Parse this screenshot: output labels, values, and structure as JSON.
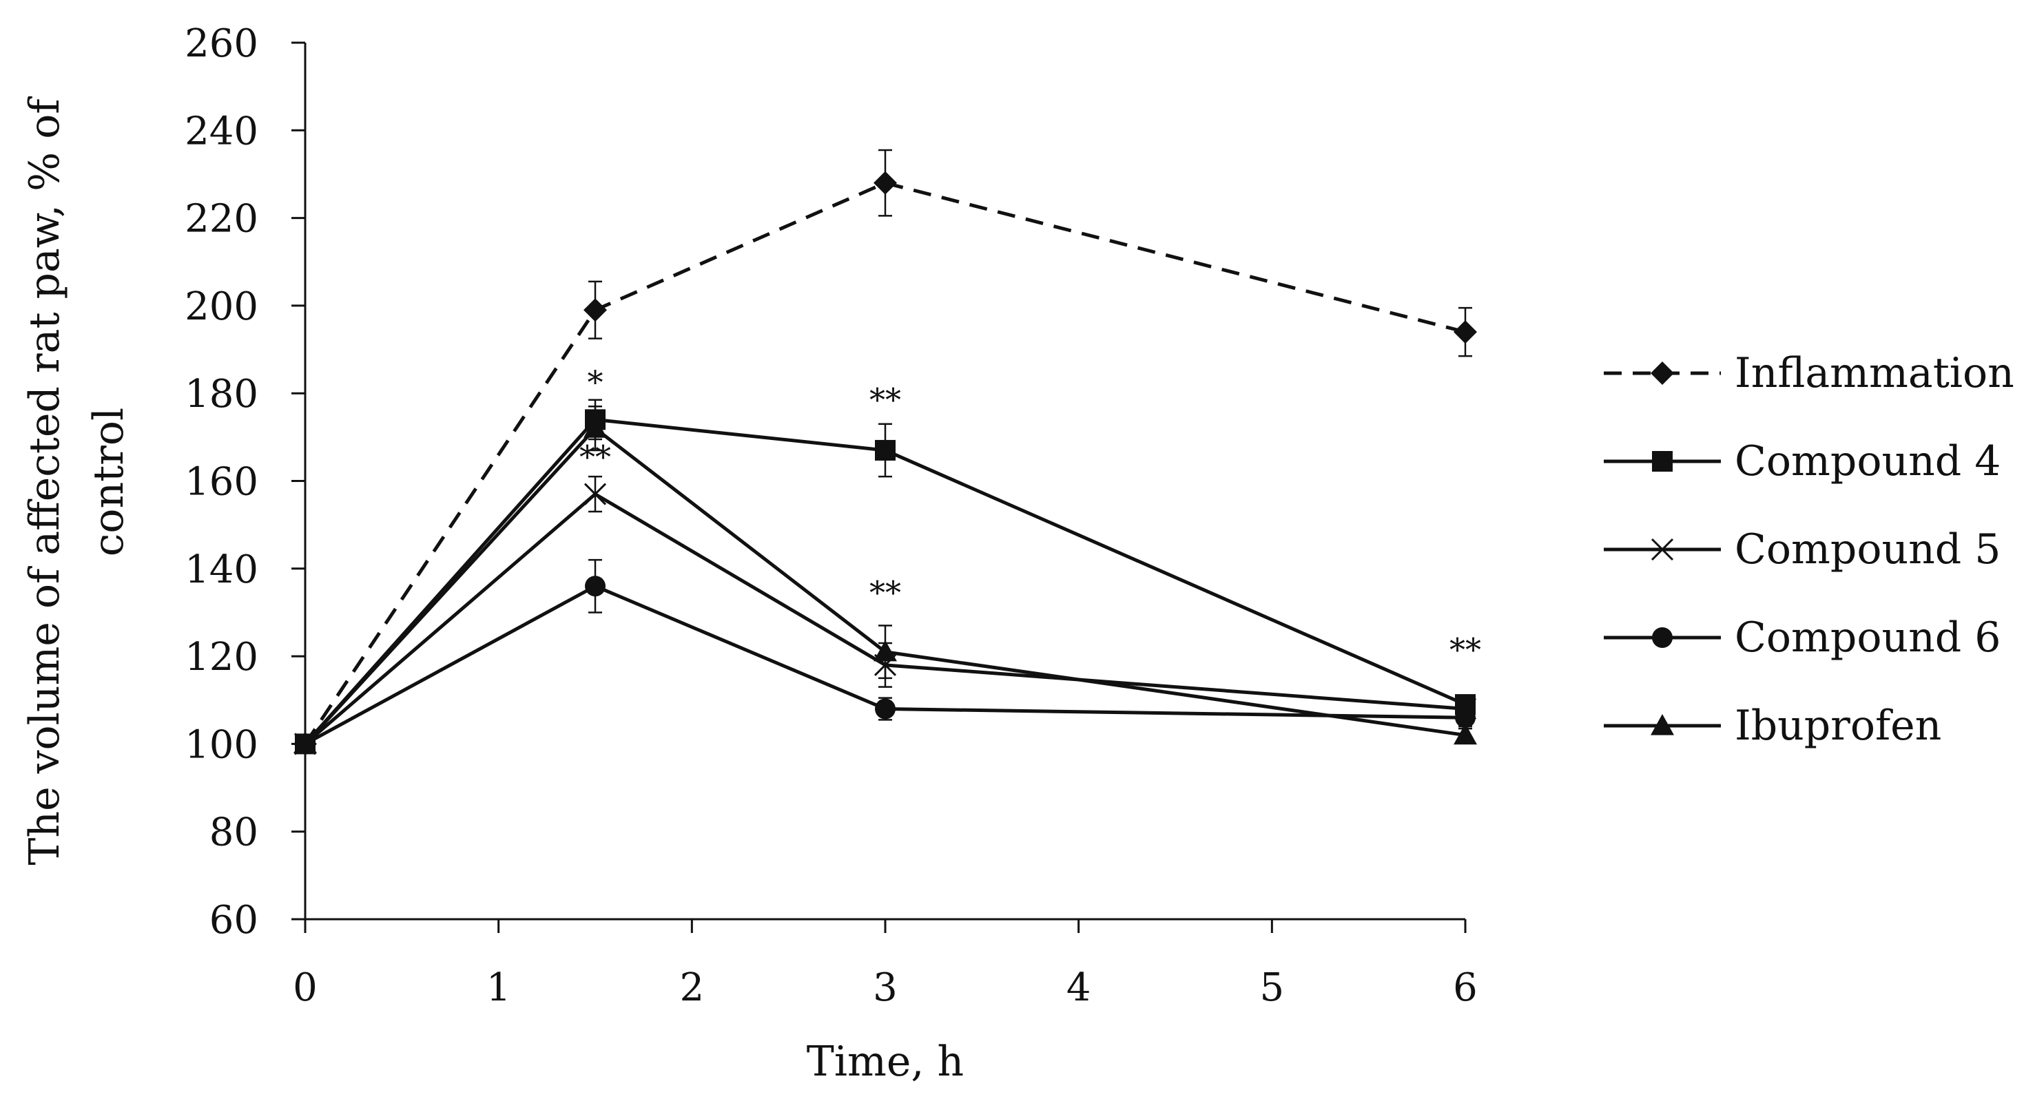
{
  "chart_data": {
    "type": "line",
    "title": "",
    "xlabel": "Time, h",
    "ylabel": [
      "The volume of affected rat paw, % of",
      "control"
    ],
    "xlim": [
      0,
      6
    ],
    "ylim": [
      60,
      260
    ],
    "xticks": [
      0,
      1,
      2,
      3,
      4,
      5,
      6
    ],
    "yticks": [
      60,
      80,
      100,
      120,
      140,
      160,
      180,
      200,
      220,
      240,
      260
    ],
    "grid": false,
    "legend_position": "right",
    "series": [
      {
        "name": "Inflammation",
        "style": "dashed",
        "marker": "diamond",
        "x": [
          0,
          1.5,
          3,
          6
        ],
        "y": [
          100,
          199,
          228,
          194
        ],
        "err": [
          0,
          6.5,
          7.5,
          5.5
        ]
      },
      {
        "name": "Compound 4",
        "style": "solid",
        "marker": "square",
        "x": [
          0,
          1.5,
          3,
          6
        ],
        "y": [
          100,
          174,
          167,
          109
        ],
        "err": [
          0,
          4.5,
          6,
          2
        ]
      },
      {
        "name": "Compound 5",
        "style": "solid",
        "marker": "x",
        "x": [
          0,
          1.5,
          3,
          6
        ],
        "y": [
          100,
          157,
          118,
          108
        ],
        "err": [
          0,
          4,
          5,
          2
        ]
      },
      {
        "name": "Compound 6",
        "style": "solid",
        "marker": "circle",
        "x": [
          0,
          1.5,
          3,
          6
        ],
        "y": [
          100,
          136,
          108,
          106
        ],
        "err": [
          0,
          6,
          2.5,
          2
        ]
      },
      {
        "name": "Ibuprofen",
        "style": "solid",
        "marker": "triangle",
        "x": [
          0,
          1.5,
          3,
          6
        ],
        "y": [
          100,
          172,
          121,
          102
        ],
        "err": [
          0,
          5,
          6,
          1.5
        ]
      }
    ],
    "annotations": [
      {
        "text": "*",
        "x": 1.5,
        "y": 180
      },
      {
        "text": "**",
        "x": 3,
        "y": 176
      },
      {
        "text": "**",
        "x": 1.5,
        "y": 163
      },
      {
        "text": "**",
        "x": 3,
        "y": 132
      },
      {
        "text": "**",
        "x": 6,
        "y": 119
      }
    ]
  }
}
